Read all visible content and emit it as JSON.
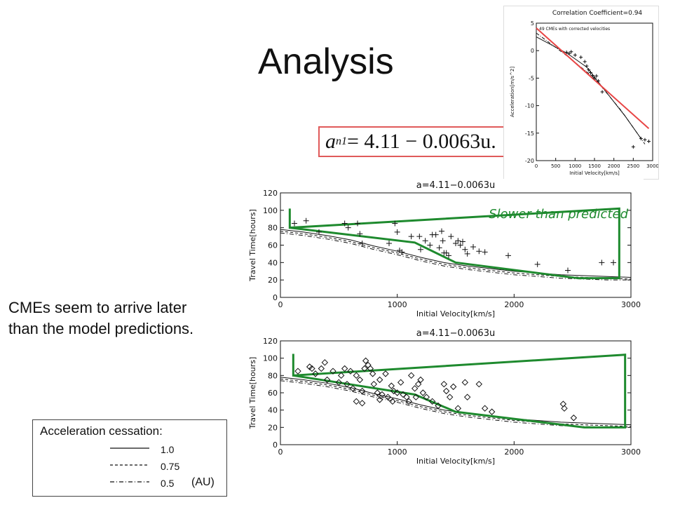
{
  "page": {
    "title": "Analysis"
  },
  "note": {
    "line1": "CMEs seem to arrive later",
    "line2": "than the model predictions."
  },
  "equation": {
    "lhs": "a",
    "sub": "n1",
    "rhs": " = 4.11 − 0.0063u."
  },
  "legend": {
    "header": "Acceleration cessation:",
    "rows": [
      {
        "label": "1.0",
        "style": "solid"
      },
      {
        "label": "0.75",
        "style": "dashed"
      },
      {
        "label": "0.5",
        "style": "dashdot"
      }
    ],
    "unit": "(AU)"
  },
  "colors": {
    "red_fit": "#e84545",
    "green_outline": "#1e8a2e",
    "eq_border": "#e05a5a"
  },
  "chart_data": [
    {
      "type": "scatter",
      "title": "Correlation Coefficient=0.94",
      "subtitle": "49 CMEs with corrected velocities",
      "xlabel": "Initial Velocity[km/s]",
      "ylabel": "Acceleration[m/s^2]",
      "xlim": [
        0,
        3000
      ],
      "ylim": [
        -20,
        5
      ],
      "xticks": [
        "0",
        "500",
        "1000",
        "1500",
        "2000",
        "2500",
        "3000"
      ],
      "yticks": [
        "5",
        "0",
        "-5",
        "-10",
        "-15",
        "-20"
      ],
      "points": [
        [
          780,
          -0.3
        ],
        [
          850,
          -0.5
        ],
        [
          900,
          -0.2
        ],
        [
          1000,
          -0.8
        ],
        [
          1150,
          -1.2
        ],
        [
          1250,
          -2.0
        ],
        [
          1300,
          -2.8
        ],
        [
          1350,
          -3.5
        ],
        [
          1400,
          -4.0
        ],
        [
          1450,
          -4.5
        ],
        [
          1500,
          -5.0
        ],
        [
          1550,
          -4.6
        ],
        [
          1600,
          -5.5
        ],
        [
          1700,
          -7.5
        ],
        [
          2500,
          -17.5
        ],
        [
          2700,
          -16.0
        ],
        [
          2800,
          -16.2
        ],
        [
          2900,
          -16.5
        ]
      ],
      "fit_line": {
        "x": [
          0,
          2900
        ],
        "y": [
          4.11,
          -14.16
        ]
      }
    },
    {
      "type": "scatter",
      "title": "a=4.11−0.0063u",
      "xlabel": "Initial Velocity[km/s]",
      "ylabel": "Travel Time[hours]",
      "xlim": [
        0,
        3000
      ],
      "ylim": [
        0,
        120
      ],
      "xticks": [
        "0",
        "1000",
        "2000",
        "3000"
      ],
      "yticks": [
        "0",
        "20",
        "40",
        "60",
        "80",
        "100",
        "120"
      ],
      "annotation": "Slower than predicted",
      "points": [
        [
          120,
          85
        ],
        [
          220,
          88
        ],
        [
          330,
          75
        ],
        [
          550,
          85
        ],
        [
          580,
          80
        ],
        [
          660,
          85
        ],
        [
          680,
          73
        ],
        [
          700,
          62
        ],
        [
          930,
          62
        ],
        [
          980,
          85
        ],
        [
          1000,
          75
        ],
        [
          1020,
          54
        ],
        [
          1040,
          52
        ],
        [
          1120,
          70
        ],
        [
          1190,
          70
        ],
        [
          1200,
          55
        ],
        [
          1240,
          65
        ],
        [
          1280,
          60
        ],
        [
          1300,
          72
        ],
        [
          1330,
          72
        ],
        [
          1360,
          57
        ],
        [
          1380,
          76
        ],
        [
          1390,
          65
        ],
        [
          1400,
          51
        ],
        [
          1420,
          51
        ],
        [
          1440,
          48
        ],
        [
          1460,
          70
        ],
        [
          1500,
          62
        ],
        [
          1520,
          65
        ],
        [
          1540,
          60
        ],
        [
          1560,
          64
        ],
        [
          1580,
          55
        ],
        [
          1600,
          50
        ],
        [
          1650,
          58
        ],
        [
          1700,
          53
        ],
        [
          1750,
          52
        ],
        [
          1950,
          48
        ],
        [
          2200,
          38
        ],
        [
          2460,
          31
        ],
        [
          2750,
          40
        ],
        [
          2850,
          40
        ]
      ],
      "model_lines": {
        "x": [
          0,
          200,
          400,
          600,
          800,
          1000,
          1200,
          1400,
          1600,
          1800,
          2000,
          2200,
          2400,
          2600,
          2800,
          3000
        ],
        "series": [
          {
            "name": "1.0",
            "values": [
              78,
              75,
              71,
              66,
              59,
              53,
              46,
              40,
              36,
              33,
              30,
              28,
              26,
              25,
              24,
              23
            ]
          },
          {
            "name": "0.75",
            "values": [
              76,
              73,
              69,
              64,
              57,
              51,
              44,
              38,
              34,
              31,
              28,
              26,
              24,
              23,
              22,
              21
            ]
          },
          {
            "name": "0.5",
            "values": [
              74,
              71,
              67,
              62,
              55,
              49,
              42,
              36,
              32,
              29,
              26,
              24,
              22,
              21,
              20,
              20
            ]
          }
        ]
      },
      "envelope": {
        "x": [
          80,
          80,
          2900,
          2900,
          2550,
          1500,
          1150,
          80
        ],
        "y": [
          102,
          80,
          102,
          22,
          22,
          40,
          63,
          80
        ]
      }
    },
    {
      "type": "scatter",
      "title": "a=4.11−0.0063u",
      "xlabel": "Initial Velocity[km/s]",
      "ylabel": "Travel Time[hours]",
      "xlim": [
        0,
        3000
      ],
      "ylim": [
        0,
        120
      ],
      "xticks": [
        "0",
        "1000",
        "2000",
        "3000"
      ],
      "yticks": [
        "0",
        "20",
        "40",
        "60",
        "80",
        "100",
        "120"
      ],
      "points": [
        [
          150,
          85
        ],
        [
          250,
          90
        ],
        [
          270,
          88
        ],
        [
          300,
          82
        ],
        [
          350,
          88
        ],
        [
          380,
          95
        ],
        [
          400,
          75
        ],
        [
          450,
          85
        ],
        [
          500,
          72
        ],
        [
          520,
          80
        ],
        [
          550,
          88
        ],
        [
          570,
          70
        ],
        [
          600,
          85
        ],
        [
          620,
          65
        ],
        [
          650,
          80
        ],
        [
          680,
          75
        ],
        [
          700,
          62
        ],
        [
          720,
          88
        ],
        [
          730,
          97
        ],
        [
          750,
          92
        ],
        [
          770,
          88
        ],
        [
          790,
          82
        ],
        [
          800,
          70
        ],
        [
          830,
          60
        ],
        [
          850,
          75
        ],
        [
          870,
          58
        ],
        [
          900,
          82
        ],
        [
          920,
          55
        ],
        [
          950,
          68
        ],
        [
          970,
          62
        ],
        [
          1000,
          60
        ],
        [
          1030,
          72
        ],
        [
          1050,
          58
        ],
        [
          1080,
          55
        ],
        [
          1100,
          50
        ],
        [
          1120,
          80
        ],
        [
          1150,
          65
        ],
        [
          1160,
          55
        ],
        [
          1180,
          70
        ],
        [
          1200,
          75
        ],
        [
          1220,
          60
        ],
        [
          1250,
          55
        ],
        [
          1300,
          50
        ],
        [
          1350,
          45
        ],
        [
          1400,
          70
        ],
        [
          1420,
          62
        ],
        [
          1450,
          55
        ],
        [
          1480,
          67
        ],
        [
          1520,
          42
        ],
        [
          1580,
          72
        ],
        [
          1600,
          55
        ],
        [
          1700,
          70
        ],
        [
          1750,
          42
        ],
        [
          1810,
          38
        ],
        [
          2420,
          47
        ],
        [
          2430,
          42
        ],
        [
          2510,
          31
        ],
        [
          700,
          48
        ],
        [
          650,
          50
        ],
        [
          850,
          52
        ],
        [
          960,
          50
        ]
      ],
      "model_lines": {
        "x": [
          0,
          200,
          400,
          600,
          800,
          1000,
          1200,
          1400,
          1600,
          1800,
          2000,
          2200,
          2400,
          2600,
          2800,
          3000
        ],
        "series": [
          {
            "name": "1.0",
            "values": [
              78,
              75,
              71,
              66,
              59,
              53,
              46,
              40,
              36,
              33,
              30,
              28,
              26,
              25,
              24,
              23
            ]
          },
          {
            "name": "0.75",
            "values": [
              76,
              73,
              69,
              64,
              57,
              51,
              44,
              38,
              34,
              31,
              28,
              26,
              24,
              23,
              22,
              21
            ]
          },
          {
            "name": "0.5",
            "values": [
              74,
              71,
              67,
              62,
              55,
              49,
              42,
              36,
              32,
              29,
              26,
              24,
              22,
              21,
              20,
              20
            ]
          }
        ]
      },
      "envelope": {
        "x": [
          110,
          110,
          2950,
          2950,
          2600,
          1500,
          1150,
          110
        ],
        "y": [
          105,
          80,
          104,
          20,
          20,
          38,
          58,
          80
        ]
      }
    }
  ]
}
